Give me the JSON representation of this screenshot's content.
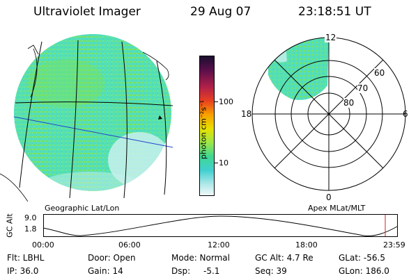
{
  "header": {
    "title": "Ultraviolet Imager",
    "date": "29 Aug 07",
    "time": "23:18:51 UT"
  },
  "colorbar": {
    "unit_label": "photon cm⁻²s⁻¹",
    "ticks": [
      "100",
      "10"
    ]
  },
  "polar": {
    "mlt_labels": [
      "12",
      "18",
      "6",
      "0"
    ],
    "lat_labels": [
      "60",
      "70",
      "80"
    ]
  },
  "captions": {
    "left": "Geographic Lat/Lon",
    "right": "Apex MLat/MLT"
  },
  "altitude_plot": {
    "axis_label": "GC Alt",
    "y_ticks": [
      "9.0",
      "1.8"
    ],
    "x_ticks": [
      "00:00",
      "06:00",
      "12:00",
      "18:00",
      "23:59"
    ]
  },
  "info": {
    "row1": [
      "Flt: LBHL",
      "Door: Open",
      "Mode: Normal",
      "GC Alt: 4.7 Re",
      "GLat: -56.5"
    ],
    "row2": [
      "IP: 36.0",
      "Gain: 14",
      "Dsp:",
      "-5.1",
      "Seq: 39",
      "GLon: 186.0"
    ]
  },
  "colors": {
    "aurora_base": "#55e0b4",
    "aurora_green": "#7be35a",
    "aurora_pale": "#c8f0ee",
    "marker_red": "#cc2222",
    "track_blue": "#2244cc"
  }
}
